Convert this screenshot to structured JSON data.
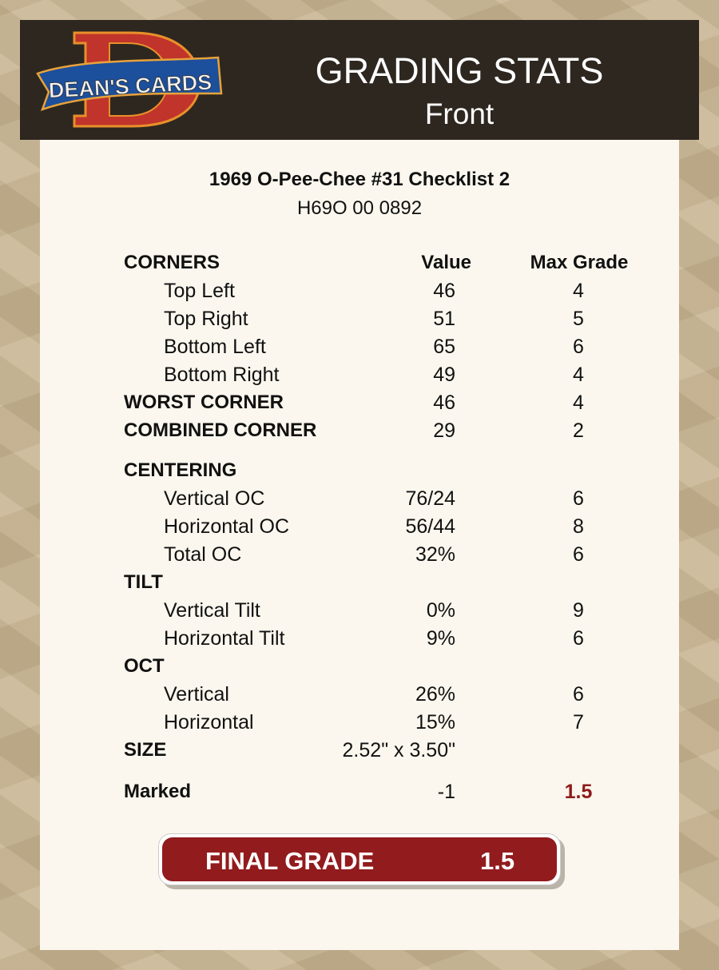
{
  "header": {
    "logo_text": "DEAN'S CARDS",
    "title": "GRADING STATS",
    "subtitle": "Front"
  },
  "card": {
    "name": "1969 O-Pee-Chee #31  Checklist 2",
    "cert": "H69O 00 0892"
  },
  "table": {
    "rows": [
      {
        "type": "head",
        "label": "CORNERS",
        "value": "Value",
        "max": "Max Grade"
      },
      {
        "type": "sub",
        "label": "Top Left",
        "value": "46",
        "max": "4"
      },
      {
        "type": "sub",
        "label": "Top Right",
        "value": "51",
        "max": "5"
      },
      {
        "type": "sub",
        "label": "Bottom Left",
        "value": "65",
        "max": "6"
      },
      {
        "type": "sub",
        "label": "Bottom Right",
        "value": "49",
        "max": "4"
      },
      {
        "type": "bold",
        "label": "WORST CORNER",
        "value": "46",
        "max": "4"
      },
      {
        "type": "bold",
        "label": "COMBINED CORNER",
        "value": "29",
        "max": "2"
      },
      {
        "type": "bold gap",
        "label": "CENTERING",
        "value": "",
        "max": ""
      },
      {
        "type": "sub",
        "label": "Vertical OC",
        "value": "76/24",
        "max": "6"
      },
      {
        "type": "sub",
        "label": "Horizontal OC",
        "value": "56/44",
        "max": "8"
      },
      {
        "type": "sub",
        "label": "Total OC",
        "value": "32%",
        "max": "6"
      },
      {
        "type": "bold",
        "label": "TILT",
        "value": "",
        "max": ""
      },
      {
        "type": "sub",
        "label": "Vertical Tilt",
        "value": "0%",
        "max": "9"
      },
      {
        "type": "sub",
        "label": "Horizontal Tilt",
        "value": "9%",
        "max": "6"
      },
      {
        "type": "bold",
        "label": "OCT",
        "value": "",
        "max": ""
      },
      {
        "type": "sub",
        "label": "Vertical",
        "value": "26%",
        "max": "6"
      },
      {
        "type": "sub",
        "label": "Horizontal",
        "value": "15%",
        "max": "7"
      },
      {
        "type": "bold",
        "label": "SIZE",
        "value": "2.52\" x 3.50\"",
        "max": ""
      },
      {
        "type": "bold gap2",
        "label": "Marked",
        "value": "-1",
        "max": "1.5",
        "max_red": true
      }
    ]
  },
  "final": {
    "label": "FINAL GRADE",
    "value": "1.5"
  },
  "colors": {
    "header_bg": "#2e2720",
    "accent_red": "#921b1d",
    "card_bg": "#fbf7ee"
  }
}
